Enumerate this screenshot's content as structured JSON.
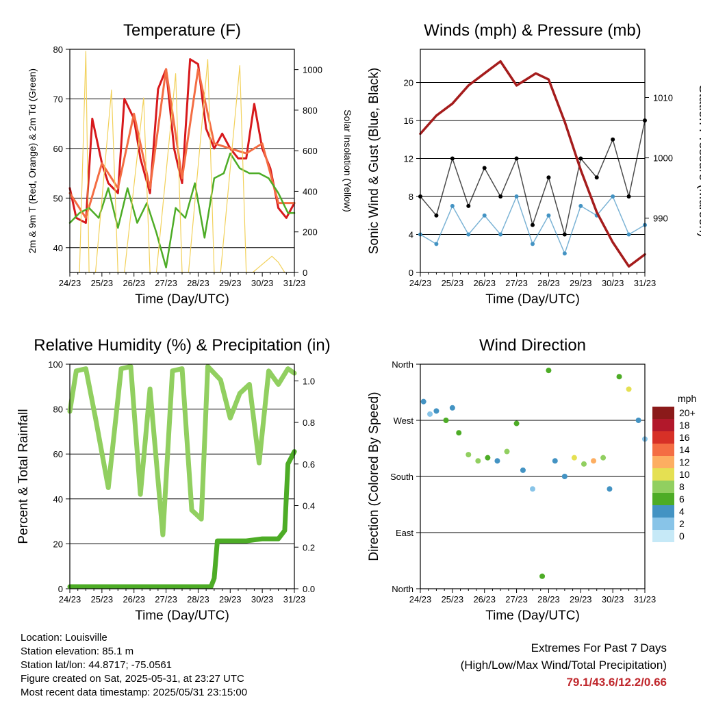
{
  "chart_data": [
    {
      "type": "line",
      "title": "Temperature (F)",
      "xlabel": "Time (Day/UTC)",
      "ylabel": "2m & 9m T (Red, Orange) & 2m Td (Green)",
      "ylabel_right": "Solar Insolation (Yellow)",
      "x_ticks": [
        "24/23",
        "25/23",
        "26/23",
        "27/23",
        "28/23",
        "29/23",
        "30/23",
        "31/23"
      ],
      "ylim": [
        35,
        80
      ],
      "y_ticks": [
        "40",
        "50",
        "60",
        "70",
        "80"
      ],
      "ylim_right": [
        0,
        1100
      ],
      "y_ticks_right": [
        "0",
        "200",
        "400",
        "600",
        "800",
        "1000"
      ],
      "grid": true,
      "series": [
        {
          "name": "2m T",
          "color": "#d7191c",
          "x": [
            0,
            0.2,
            0.5,
            0.7,
            1.0,
            1.2,
            1.5,
            1.7,
            2.0,
            2.2,
            2.5,
            2.75,
            3.0,
            3.25,
            3.5,
            3.75,
            4.0,
            4.25,
            4.5,
            4.75,
            5.0,
            5.25,
            5.5,
            5.75,
            6.0,
            6.25,
            6.5,
            6.75,
            7.0
          ],
          "values": [
            52,
            46,
            45,
            66,
            57,
            53,
            51,
            70,
            66,
            58,
            51,
            72,
            76,
            60,
            53,
            78,
            77,
            64,
            60,
            63,
            60,
            58,
            58,
            69,
            60,
            56,
            48,
            46,
            49
          ]
        },
        {
          "name": "9m T",
          "color": "#f46d43",
          "x": [
            0,
            0.5,
            1.0,
            1.5,
            2.0,
            2.5,
            3.0,
            3.5,
            4.0,
            4.5,
            5.0,
            5.5,
            6.0,
            6.5,
            7.0
          ],
          "values": [
            51,
            46,
            57,
            52,
            67,
            52,
            76,
            54,
            76,
            61,
            60,
            59,
            61,
            49,
            49
          ]
        },
        {
          "name": "2m Td",
          "color": "#4dac26",
          "x": [
            0,
            0.3,
            0.6,
            0.9,
            1.2,
            1.5,
            1.8,
            2.1,
            2.4,
            2.7,
            3.0,
            3.3,
            3.6,
            3.9,
            4.2,
            4.5,
            4.8,
            5.0,
            5.3,
            5.6,
            5.9,
            6.2,
            6.5,
            6.8,
            7.0
          ],
          "values": [
            45,
            47,
            48,
            46,
            52,
            44,
            52,
            45,
            49,
            43,
            36,
            48,
            46,
            53,
            42,
            54,
            55,
            59,
            56,
            55,
            55,
            54,
            51,
            47,
            47
          ]
        },
        {
          "name": "Solar Insolation",
          "color": "#f2d15a",
          "axis": "right",
          "x": [
            0.3,
            0.5,
            0.6,
            0.8,
            1.3,
            1.5,
            1.7,
            2.3,
            2.5,
            2.7,
            3.3,
            3.5,
            3.7,
            4.3,
            4.5,
            4.7,
            5.3,
            5.5,
            5.7,
            6.3,
            6.5,
            6.7
          ],
          "values": [
            0,
            1090,
            0,
            0,
            900,
            0,
            0,
            860,
            0,
            0,
            980,
            0,
            0,
            1050,
            0,
            0,
            1020,
            0,
            0,
            80,
            50,
            0
          ]
        }
      ]
    },
    {
      "type": "scatter",
      "title": "Winds (mph) & Pressure (mb)",
      "xlabel": "Time (Day/UTC)",
      "ylabel": "Sonic Wind & Gust (Blue, Black)",
      "ylabel_right": "Station Pressure (Maroon)",
      "x_ticks": [
        "24/23",
        "25/23",
        "26/23",
        "27/23",
        "28/23",
        "29/23",
        "30/23",
        "31/23"
      ],
      "ylim": [
        0,
        23.5
      ],
      "y_ticks": [
        "0",
        "4",
        "8",
        "12",
        "16",
        "20"
      ],
      "ylim_right": [
        981,
        1018
      ],
      "y_ticks_right": [
        "990",
        "1000",
        "1010"
      ],
      "grid": true,
      "series": [
        {
          "name": "Wind",
          "color": "#4393c3",
          "x": [
            0,
            0.5,
            1.0,
            1.5,
            2.0,
            2.5,
            3.0,
            3.5,
            4.0,
            4.5,
            5.0,
            5.5,
            6.0,
            6.5,
            7.0
          ],
          "values": [
            4,
            3,
            7,
            4,
            6,
            4,
            8,
            3,
            6,
            2,
            7,
            6,
            8,
            4,
            5
          ]
        },
        {
          "name": "Gust",
          "color": "#000000",
          "x": [
            0,
            0.5,
            1.0,
            1.5,
            2.0,
            2.5,
            3.0,
            3.5,
            4.0,
            4.5,
            5.0,
            5.5,
            6.0,
            6.5,
            7.0
          ],
          "values": [
            8,
            6,
            12,
            7,
            11,
            8,
            12,
            5,
            10,
            4,
            12,
            10,
            14,
            8,
            16
          ]
        },
        {
          "name": "Pressure",
          "color": "#a51c1c",
          "axis": "right",
          "x": [
            0,
            0.5,
            1.0,
            1.5,
            2.0,
            2.5,
            3.0,
            3.3,
            3.6,
            4.0,
            4.5,
            5.0,
            5.5,
            6.0,
            6.5,
            7.0
          ],
          "values": [
            1004,
            1007,
            1009,
            1012,
            1014,
            1016,
            1012,
            1013,
            1014,
            1013,
            1006,
            998,
            991,
            986,
            982,
            984
          ]
        }
      ]
    },
    {
      "type": "line",
      "title": "Relative Humidity (%) & Precipitation (in)",
      "xlabel": "Time (Day/UTC)",
      "ylabel": "Percent & Total Rainfall",
      "x_ticks": [
        "24/23",
        "25/23",
        "26/23",
        "27/23",
        "28/23",
        "29/23",
        "30/23",
        "31/23"
      ],
      "ylim": [
        0,
        100
      ],
      "y_ticks": [
        "0",
        "20",
        "40",
        "60",
        "80",
        "100"
      ],
      "ylim_right": [
        0,
        1.08
      ],
      "y_ticks_right": [
        "0.0",
        "0.2",
        "0.4",
        "0.6",
        "0.8",
        "1.0"
      ],
      "grid": true,
      "series": [
        {
          "name": "RH",
          "color": "#91cf60",
          "x": [
            0,
            0.2,
            0.5,
            0.8,
            1.2,
            1.6,
            1.9,
            2.2,
            2.5,
            2.9,
            3.2,
            3.5,
            3.8,
            4.1,
            4.3,
            4.7,
            5.0,
            5.3,
            5.6,
            5.9,
            6.2,
            6.5,
            6.8,
            7.0
          ],
          "values": [
            79,
            97,
            98,
            76,
            45,
            98,
            99,
            42,
            89,
            24,
            97,
            98,
            35,
            31,
            99,
            93,
            76,
            87,
            91,
            56,
            97,
            91,
            98,
            96
          ]
        },
        {
          "name": "Total Precipitation",
          "color": "#4dac26",
          "axis": "right",
          "x": [
            0,
            4.4,
            4.5,
            4.6,
            5.0,
            5.5,
            6.0,
            6.5,
            6.7,
            6.8,
            7.0
          ],
          "values": [
            0.01,
            0.01,
            0.05,
            0.23,
            0.23,
            0.23,
            0.24,
            0.24,
            0.28,
            0.6,
            0.66
          ]
        }
      ]
    },
    {
      "type": "scatter",
      "title": "Wind Direction",
      "xlabel": "Time (Day/UTC)",
      "ylabel": "Direction (Colored By Speed)",
      "x_ticks": [
        "24/23",
        "25/23",
        "26/23",
        "27/23",
        "28/23",
        "29/23",
        "30/23",
        "31/23"
      ],
      "y_ticks": [
        "North",
        "East",
        "South",
        "West",
        "North"
      ],
      "ylim": [
        0,
        360
      ],
      "grid": true,
      "colorbar_title": "mph",
      "colorbar_labels": [
        "0",
        "2",
        "4",
        "6",
        "8",
        "10",
        "12",
        "14",
        "16",
        "18",
        "20+"
      ],
      "colorbar_colors": [
        "#c6e9f7",
        "#88c4e8",
        "#4393c3",
        "#4dac26",
        "#91cf60",
        "#e5e052",
        "#fdae61",
        "#f46d43",
        "#d73027",
        "#b2182b",
        "#8b1a1a"
      ],
      "points": [
        {
          "x": 0.1,
          "y": 300,
          "speed": 4
        },
        {
          "x": 0.3,
          "y": 280,
          "speed": 2
        },
        {
          "x": 0.5,
          "y": 285,
          "speed": 4
        },
        {
          "x": 0.8,
          "y": 270,
          "speed": 6
        },
        {
          "x": 1.0,
          "y": 290,
          "speed": 4
        },
        {
          "x": 1.2,
          "y": 250,
          "speed": 6
        },
        {
          "x": 1.5,
          "y": 215,
          "speed": 8
        },
        {
          "x": 1.8,
          "y": 205,
          "speed": 8
        },
        {
          "x": 2.1,
          "y": 210,
          "speed": 6
        },
        {
          "x": 2.4,
          "y": 205,
          "speed": 4
        },
        {
          "x": 2.7,
          "y": 220,
          "speed": 8
        },
        {
          "x": 3.0,
          "y": 265,
          "speed": 6
        },
        {
          "x": 3.2,
          "y": 190,
          "speed": 4
        },
        {
          "x": 3.5,
          "y": 160,
          "speed": 2
        },
        {
          "x": 3.8,
          "y": 20,
          "speed": 6
        },
        {
          "x": 4.0,
          "y": 350,
          "speed": 6
        },
        {
          "x": 4.2,
          "y": 205,
          "speed": 4
        },
        {
          "x": 4.5,
          "y": 180,
          "speed": 4
        },
        {
          "x": 4.8,
          "y": 210,
          "speed": 10
        },
        {
          "x": 5.1,
          "y": 200,
          "speed": 8
        },
        {
          "x": 5.4,
          "y": 205,
          "speed": 12
        },
        {
          "x": 5.7,
          "y": 210,
          "speed": 8
        },
        {
          "x": 5.9,
          "y": 160,
          "speed": 4
        },
        {
          "x": 6.2,
          "y": 340,
          "speed": 6
        },
        {
          "x": 6.5,
          "y": 320,
          "speed": 10
        },
        {
          "x": 6.8,
          "y": 270,
          "speed": 4
        },
        {
          "x": 7.0,
          "y": 240,
          "speed": 2
        }
      ]
    }
  ],
  "footer": {
    "location": "Location: Louisville",
    "elevation": "Station elevation: 85.1 m",
    "latlon": "Station lat/lon: 44.8717; -75.0561",
    "created": "Figure created on Sat, 2025-05-31, at 23:27 UTC",
    "recent": "Most recent data timestamp: 2025/05/31 23:15:00"
  },
  "extremes": {
    "title": "Extremes For Past 7 Days",
    "subtitle": "(High/Low/Max Wind/Total Precipitation)",
    "values": "79.1/43.6/12.2/0.66"
  }
}
